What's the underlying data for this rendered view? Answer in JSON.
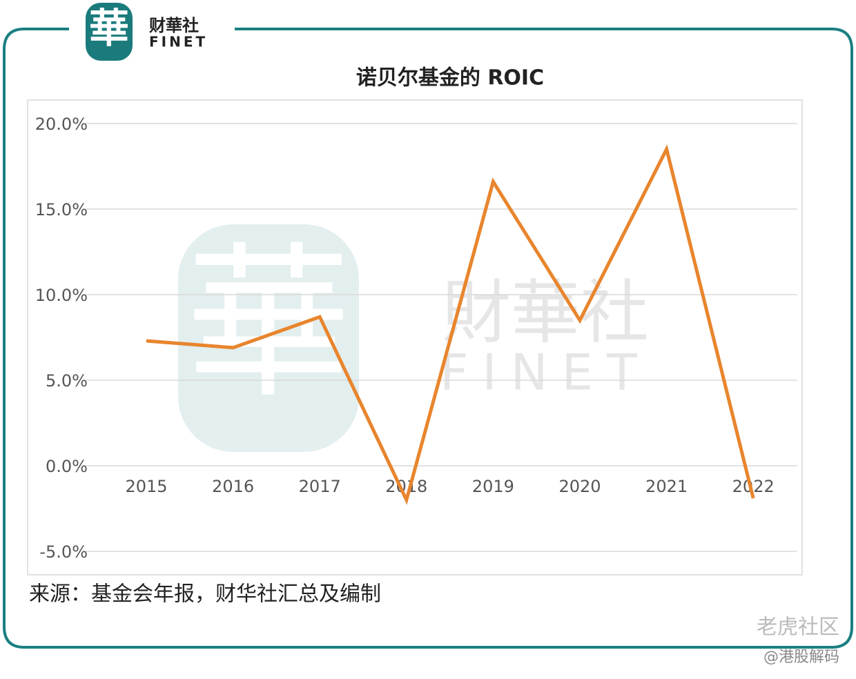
{
  "branding": {
    "logo_char": "華",
    "name": "财華社",
    "name_en": "FINET",
    "watermark_name": "財華社",
    "watermark_en": "FINET"
  },
  "chart_data": {
    "type": "line",
    "title": "诺贝尔基金的 ROIC",
    "categories": [
      "2015",
      "2016",
      "2017",
      "2018",
      "2019",
      "2020",
      "2021",
      "2022"
    ],
    "series": [
      {
        "name": "ROIC",
        "color": "#e8852d",
        "values": [
          7.3,
          6.9,
          8.7,
          -2.0,
          16.6,
          8.5,
          18.5,
          -1.9
        ]
      }
    ],
    "ylim": [
      -5,
      20
    ],
    "yticks": [
      {
        "value": -5,
        "label": "-5.0%"
      },
      {
        "value": 0,
        "label": "0.0%"
      },
      {
        "value": 5,
        "label": "5.0%"
      },
      {
        "value": 10,
        "label": "10.0%"
      },
      {
        "value": 15,
        "label": "15.0%"
      },
      {
        "value": 20,
        "label": "20.0%"
      }
    ],
    "grid": true
  },
  "source": "来源：基金会年报，财华社汇总及编制",
  "footer": {
    "platform": "老虎社区",
    "author": "@港股解码"
  }
}
